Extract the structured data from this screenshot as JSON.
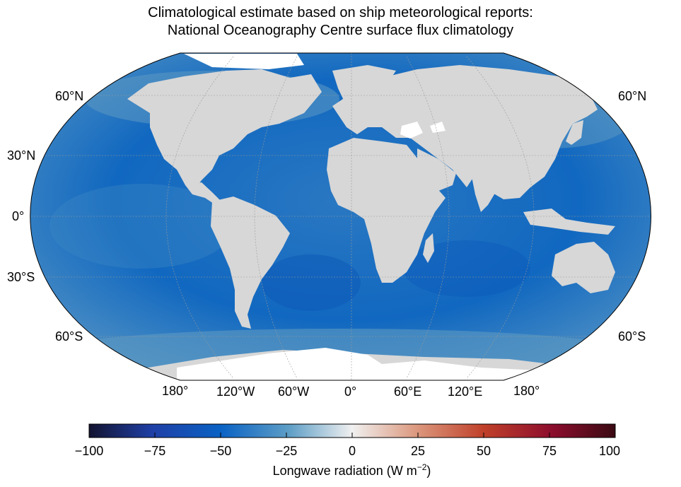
{
  "title_line1": "Climatological estimate based on ship meteorological reports:",
  "title_line2": "National Oceanography Centre surface flux climatology",
  "lat_labels_left": [
    "60°N",
    "30°N",
    "0°",
    "30°S",
    "60°S"
  ],
  "lat_labels_right": [
    "60°N",
    "60°S"
  ],
  "lon_labels": [
    "180°",
    "120°W",
    "60°W",
    "0°",
    "60°E",
    "120°E",
    "180°"
  ],
  "colorbar": {
    "ticks": [
      "−100",
      "−75",
      "−50",
      "−25",
      "0",
      "25",
      "50",
      "75",
      "100"
    ],
    "label_main": "Longwave radiation (W m",
    "label_sup": "−2",
    "label_end": ")",
    "vmin": -100,
    "vmax": 100,
    "colors": [
      "#131330",
      "#1f3fa6",
      "#0a62c4",
      "#5e9ec6",
      "#f0f0f0",
      "#dc9a80",
      "#c0402a",
      "#8c0d2d",
      "#3a0a12"
    ]
  },
  "colors": {
    "ocean_deep": "#0a5fc0",
    "ocean_mid": "#2e7fc4",
    "ocean_light": "#5d99c2",
    "land": "#d7d7d7",
    "ice": "#ffffff"
  }
}
